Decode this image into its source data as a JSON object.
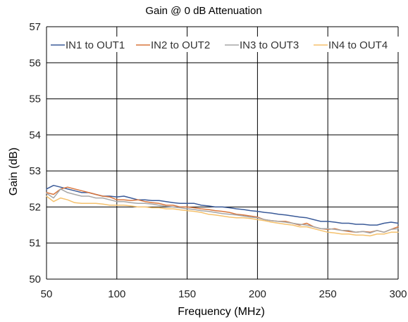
{
  "chart_data": {
    "type": "line",
    "title": "Gain @ 0 dB Attenuation",
    "xlabel": "Frequency (MHz)",
    "ylabel": "Gain (dB)",
    "xlim": [
      50,
      300
    ],
    "ylim": [
      50,
      57
    ],
    "xticks": [
      50,
      100,
      150,
      200,
      250,
      300
    ],
    "yticks": [
      50,
      51,
      52,
      53,
      54,
      55,
      56,
      57
    ],
    "grid": true,
    "legend_position": "top",
    "x": [
      50,
      55,
      60,
      65,
      70,
      75,
      80,
      85,
      90,
      95,
      100,
      105,
      110,
      115,
      120,
      125,
      130,
      135,
      140,
      145,
      150,
      155,
      160,
      165,
      170,
      175,
      180,
      185,
      190,
      195,
      200,
      205,
      210,
      215,
      220,
      225,
      230,
      235,
      240,
      245,
      250,
      255,
      260,
      265,
      270,
      275,
      280,
      285,
      290,
      295,
      300
    ],
    "series": [
      {
        "name": "IN1 to OUT1",
        "color": "#3a5a98",
        "values": [
          52.5,
          52.6,
          52.55,
          52.5,
          52.45,
          52.4,
          52.4,
          52.35,
          52.3,
          52.3,
          52.28,
          52.3,
          52.25,
          52.2,
          52.2,
          52.18,
          52.18,
          52.15,
          52.12,
          52.1,
          52.1,
          52.1,
          52.05,
          52.03,
          52.0,
          52.0,
          51.98,
          51.95,
          51.93,
          51.9,
          51.88,
          51.85,
          51.83,
          51.8,
          51.78,
          51.75,
          51.72,
          51.7,
          51.65,
          51.6,
          51.6,
          51.58,
          51.55,
          51.55,
          51.52,
          51.52,
          51.5,
          51.5,
          51.55,
          51.58,
          51.55
        ]
      },
      {
        "name": "IN2 to OUT2",
        "color": "#d9753b",
        "values": [
          52.4,
          52.35,
          52.5,
          52.55,
          52.5,
          52.45,
          52.4,
          52.35,
          52.3,
          52.28,
          52.2,
          52.2,
          52.18,
          52.2,
          52.15,
          52.12,
          52.1,
          52.05,
          52.05,
          52.0,
          52.0,
          51.98,
          51.95,
          51.93,
          51.9,
          51.88,
          51.85,
          51.8,
          51.78,
          51.75,
          51.72,
          51.65,
          51.62,
          51.6,
          51.6,
          51.55,
          51.5,
          51.55,
          51.45,
          51.4,
          51.38,
          51.4,
          51.35,
          51.32,
          51.3,
          51.32,
          51.3,
          51.35,
          51.3,
          51.38,
          51.45
        ]
      },
      {
        "name": "IN3 to OUT3",
        "color": "#a6a6a6",
        "values": [
          52.38,
          52.25,
          52.5,
          52.4,
          52.35,
          52.3,
          52.3,
          52.25,
          52.25,
          52.2,
          52.15,
          52.15,
          52.12,
          52.1,
          52.1,
          52.08,
          52.05,
          52.02,
          52.0,
          51.98,
          51.95,
          51.93,
          51.9,
          51.88,
          51.85,
          51.82,
          51.8,
          51.78,
          51.75,
          51.72,
          51.7,
          51.65,
          51.62,
          51.6,
          51.58,
          51.55,
          51.52,
          51.5,
          51.45,
          51.4,
          51.4,
          51.38,
          51.35,
          51.35,
          51.3,
          51.32,
          51.28,
          51.35,
          51.3,
          51.38,
          51.4
        ]
      },
      {
        "name": "IN4 to OUT4",
        "color": "#f5c16c",
        "values": [
          52.3,
          52.15,
          52.25,
          52.2,
          52.12,
          52.1,
          52.1,
          52.1,
          52.08,
          52.05,
          52.05,
          52.05,
          52.03,
          52.0,
          52.0,
          51.98,
          51.98,
          51.95,
          51.95,
          51.92,
          51.9,
          51.88,
          51.85,
          51.8,
          51.78,
          51.75,
          51.72,
          51.7,
          51.7,
          51.68,
          51.65,
          51.62,
          51.58,
          51.55,
          51.52,
          51.5,
          51.45,
          51.45,
          51.4,
          51.35,
          51.3,
          51.28,
          51.25,
          51.25,
          51.22,
          51.22,
          51.2,
          51.25,
          51.25,
          51.3,
          51.3
        ]
      }
    ]
  }
}
